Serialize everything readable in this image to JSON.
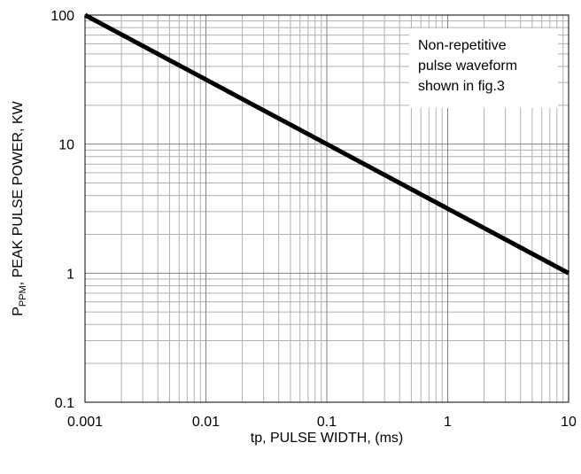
{
  "chart_data": {
    "type": "line",
    "x_scale": "log",
    "y_scale": "log",
    "xlim": [
      0.001,
      10
    ],
    "ylim": [
      0.1,
      100
    ],
    "x_ticks": [
      "0.001",
      "0.01",
      "0.1",
      "1",
      "10"
    ],
    "y_ticks": [
      "0.1",
      "1",
      "10",
      "100"
    ],
    "xlabel": "tp, PULSE WIDTH, (ms)",
    "ylabel_main": "P",
    "ylabel_sub": "PPM",
    "ylabel_rest": ", PEAK PULSE POWER, KW",
    "grid": true,
    "line_color": "#000000",
    "series": [
      {
        "x": [
          0.001,
          10
        ],
        "y": [
          100,
          1
        ]
      }
    ],
    "annotation": [
      "Non-repetitive",
      "pulse waveform",
      "shown in fig.3"
    ]
  }
}
